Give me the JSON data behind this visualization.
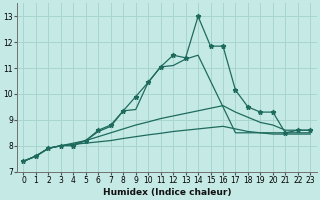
{
  "xlabel": "Humidex (Indice chaleur)",
  "bg_color": "#c5eae6",
  "grid_color": "#a8d5d0",
  "line_color": "#1e6b5e",
  "xlim": [
    -0.5,
    23.5
  ],
  "ylim": [
    7,
    13.5
  ],
  "xticks": [
    0,
    1,
    2,
    3,
    4,
    5,
    6,
    7,
    8,
    9,
    10,
    11,
    12,
    13,
    14,
    15,
    16,
    17,
    18,
    19,
    20,
    21,
    22,
    23
  ],
  "yticks": [
    7,
    8,
    9,
    10,
    11,
    12,
    13
  ],
  "main_x": [
    0,
    1,
    2,
    3,
    4,
    5,
    6,
    7,
    8,
    9,
    10,
    11,
    12,
    13,
    14,
    15,
    16,
    17,
    18,
    19,
    20,
    21,
    22,
    23
  ],
  "main_y": [
    7.4,
    7.6,
    7.9,
    8.0,
    8.0,
    8.2,
    8.6,
    8.8,
    9.35,
    9.9,
    10.45,
    11.05,
    11.5,
    11.4,
    13.0,
    11.85,
    11.85,
    10.15,
    9.5,
    9.3,
    9.3,
    8.5,
    8.6,
    8.6
  ],
  "line2_x": [
    0,
    1,
    2,
    3,
    4,
    5,
    6,
    7,
    8,
    9,
    10,
    11,
    12,
    13,
    14,
    15,
    16,
    17,
    18,
    19,
    20,
    21,
    22,
    23
  ],
  "line2_y": [
    7.4,
    7.6,
    7.9,
    8.0,
    8.05,
    8.2,
    8.55,
    8.75,
    9.35,
    9.4,
    10.45,
    11.05,
    11.1,
    11.35,
    11.5,
    10.5,
    9.5,
    8.5,
    8.5,
    8.5,
    8.5,
    8.5,
    8.5,
    8.5
  ],
  "line3_x": [
    0,
    1,
    2,
    3,
    4,
    5,
    6,
    7,
    8,
    9,
    10,
    11,
    12,
    13,
    14,
    15,
    16,
    17,
    18,
    19,
    20,
    21,
    22,
    23
  ],
  "line3_y": [
    7.4,
    7.6,
    7.9,
    8.0,
    8.1,
    8.2,
    8.35,
    8.5,
    8.65,
    8.8,
    8.92,
    9.05,
    9.15,
    9.25,
    9.35,
    9.45,
    9.55,
    9.3,
    9.1,
    8.9,
    8.8,
    8.6,
    8.6,
    8.6
  ],
  "line4_x": [
    0,
    1,
    2,
    3,
    4,
    5,
    6,
    7,
    8,
    9,
    10,
    11,
    12,
    13,
    14,
    15,
    16,
    17,
    18,
    19,
    20,
    21,
    22,
    23
  ],
  "line4_y": [
    7.4,
    7.6,
    7.9,
    8.0,
    8.05,
    8.1,
    8.15,
    8.2,
    8.28,
    8.35,
    8.42,
    8.48,
    8.55,
    8.6,
    8.65,
    8.7,
    8.75,
    8.65,
    8.55,
    8.5,
    8.45,
    8.45,
    8.45,
    8.45
  ]
}
